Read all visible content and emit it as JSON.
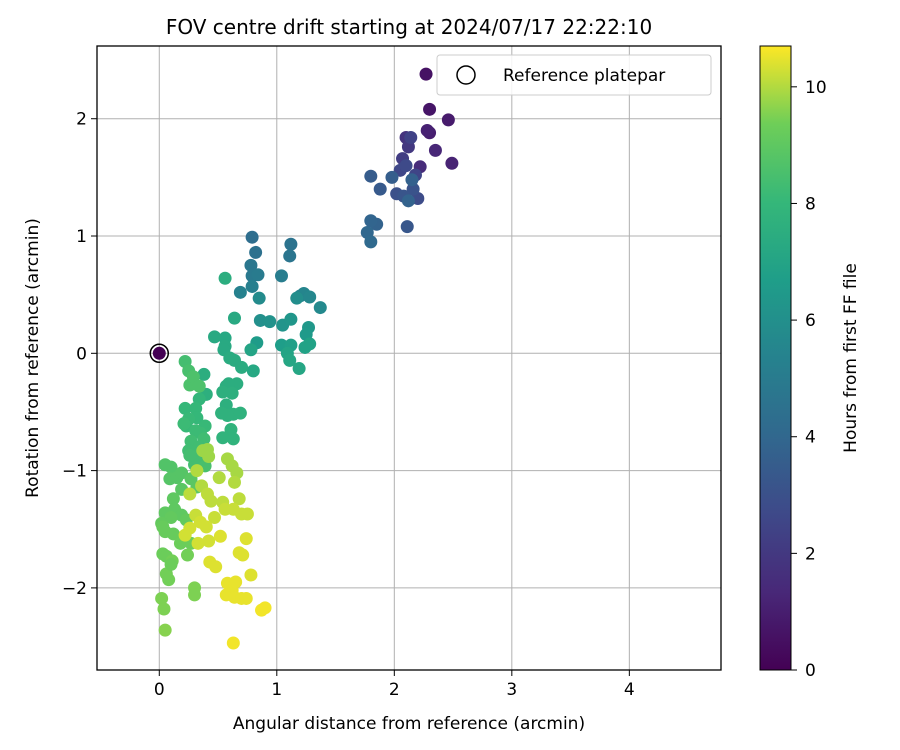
{
  "chart_data": {
    "type": "scatter",
    "title": "FOV centre drift starting at 2024/07/17 22:22:10",
    "xlabel": "Angular distance from reference (arcmin)",
    "ylabel": "Rotation from reference (arcmin)",
    "xlim": [
      -0.53,
      4.78
    ],
    "ylim": [
      -2.7,
      2.62
    ],
    "xticks": [
      0,
      1,
      2,
      3,
      4
    ],
    "xtick_labels": [
      "0",
      "1",
      "2",
      "3",
      "4"
    ],
    "yticks": [
      -2,
      -1,
      0,
      1,
      2
    ],
    "ytick_labels": [
      "−2",
      "−1",
      "0",
      "1",
      "2"
    ],
    "grid": true,
    "legend": {
      "placement": "upper-right",
      "label": "Reference platepar"
    },
    "reference_point": {
      "x": 0,
      "y": 0
    },
    "colorbar": {
      "label": "Hours from first FF file",
      "range": [
        0,
        10.7
      ],
      "ticks": [
        0,
        2,
        4,
        6,
        8,
        10
      ],
      "tick_labels": [
        "0",
        "2",
        "4",
        "6",
        "8",
        "10"
      ],
      "colormap": "viridis"
    },
    "series": [
      {
        "points": [
          [
            0.0,
            0.0,
            0.0
          ],
          [
            2.27,
            2.38,
            0.6
          ],
          [
            2.3,
            2.08,
            0.7
          ],
          [
            2.46,
            1.99,
            0.9
          ],
          [
            2.3,
            1.88,
            1.0
          ],
          [
            2.28,
            1.9,
            1.1
          ],
          [
            2.49,
            1.62,
            1.2
          ],
          [
            2.35,
            1.73,
            1.3
          ],
          [
            2.22,
            1.59,
            1.5
          ],
          [
            2.1,
            1.84,
            1.8
          ],
          [
            2.12,
            1.76,
            2.0
          ],
          [
            2.07,
            1.66,
            2.2
          ],
          [
            2.14,
            1.84,
            2.4
          ],
          [
            2.18,
            1.52,
            2.5
          ],
          [
            2.05,
            1.56,
            2.6
          ],
          [
            2.1,
            1.6,
            2.7
          ],
          [
            2.2,
            1.32,
            2.8
          ],
          [
            2.02,
            1.36,
            3.0
          ],
          [
            2.16,
            1.4,
            3.1
          ],
          [
            2.08,
            1.34,
            3.2
          ],
          [
            2.11,
            1.08,
            3.3
          ],
          [
            1.88,
            1.4,
            3.4
          ],
          [
            1.8,
            1.51,
            3.5
          ],
          [
            1.98,
            1.5,
            3.6
          ],
          [
            2.15,
            1.48,
            3.7
          ],
          [
            2.12,
            1.3,
            3.8
          ],
          [
            1.85,
            1.1,
            3.8
          ],
          [
            1.8,
            1.13,
            3.9
          ],
          [
            1.77,
            1.03,
            4.0
          ],
          [
            1.8,
            0.95,
            4.1
          ],
          [
            0.79,
            0.99,
            4.3
          ],
          [
            0.82,
            0.86,
            4.5
          ],
          [
            1.12,
            0.93,
            4.6
          ],
          [
            1.11,
            0.83,
            4.7
          ],
          [
            0.78,
            0.75,
            4.8
          ],
          [
            0.79,
            0.66,
            4.9
          ],
          [
            0.84,
            0.67,
            5.0
          ],
          [
            1.04,
            0.66,
            5.1
          ],
          [
            0.79,
            0.57,
            5.2
          ],
          [
            0.69,
            0.52,
            5.3
          ],
          [
            1.2,
            0.49,
            5.4
          ],
          [
            1.23,
            0.51,
            5.5
          ],
          [
            1.28,
            0.48,
            5.6
          ],
          [
            1.37,
            0.39,
            5.7
          ],
          [
            0.85,
            0.47,
            5.8
          ],
          [
            1.17,
            0.47,
            5.9
          ],
          [
            0.86,
            0.28,
            6.0
          ],
          [
            0.94,
            0.27,
            6.1
          ],
          [
            1.05,
            0.24,
            6.2
          ],
          [
            1.12,
            0.29,
            6.3
          ],
          [
            1.27,
            0.22,
            6.4
          ],
          [
            1.25,
            0.16,
            6.5
          ],
          [
            0.83,
            0.09,
            6.6
          ],
          [
            1.04,
            0.07,
            6.7
          ],
          [
            1.12,
            0.07,
            6.8
          ],
          [
            1.28,
            0.08,
            6.9
          ],
          [
            1.24,
            0.05,
            6.9
          ],
          [
            0.78,
            0.03,
            7.0
          ],
          [
            1.09,
            0.0,
            7.0
          ],
          [
            1.11,
            -0.06,
            7.1
          ],
          [
            1.19,
            -0.13,
            7.1
          ],
          [
            0.8,
            -0.15,
            7.2
          ],
          [
            0.56,
            0.13,
            7.2
          ],
          [
            0.47,
            0.14,
            7.3
          ],
          [
            0.56,
            0.06,
            7.3
          ],
          [
            0.64,
            0.3,
            7.3
          ],
          [
            0.55,
            0.03,
            7.3
          ],
          [
            0.6,
            -0.04,
            7.4
          ],
          [
            0.64,
            -0.06,
            7.4
          ],
          [
            0.7,
            -0.12,
            7.4
          ],
          [
            0.38,
            -0.18,
            7.5
          ],
          [
            0.66,
            -0.26,
            7.5
          ],
          [
            0.57,
            -0.28,
            7.5
          ],
          [
            0.59,
            -0.26,
            7.5
          ],
          [
            0.54,
            -0.33,
            7.6
          ],
          [
            0.62,
            -0.34,
            7.6
          ],
          [
            0.4,
            -0.35,
            7.6
          ],
          [
            0.57,
            -0.44,
            7.6
          ],
          [
            0.63,
            -0.52,
            7.7
          ],
          [
            0.58,
            -0.53,
            7.7
          ],
          [
            0.53,
            -0.51,
            7.7
          ],
          [
            0.69,
            -0.51,
            7.7
          ],
          [
            0.61,
            -0.65,
            7.8
          ],
          [
            0.63,
            -0.73,
            7.8
          ],
          [
            0.54,
            -0.72,
            7.8
          ],
          [
            0.56,
            0.64,
            7.5
          ],
          [
            0.34,
            -0.39,
            7.9
          ],
          [
            0.22,
            -0.47,
            8.0
          ],
          [
            0.31,
            -0.47,
            8.0
          ],
          [
            0.32,
            -0.55,
            8.0
          ],
          [
            0.25,
            -0.56,
            8.1
          ],
          [
            0.23,
            -0.62,
            8.1
          ],
          [
            0.39,
            -0.62,
            8.1
          ],
          [
            0.31,
            -0.66,
            8.2
          ],
          [
            0.21,
            -0.6,
            8.2
          ],
          [
            0.35,
            -0.68,
            8.2
          ],
          [
            0.27,
            -0.75,
            8.3
          ],
          [
            0.38,
            -0.73,
            8.3
          ],
          [
            0.34,
            -0.8,
            8.3
          ],
          [
            0.25,
            -0.83,
            8.3
          ],
          [
            0.31,
            -0.88,
            8.4
          ],
          [
            0.39,
            -0.89,
            8.4
          ],
          [
            0.3,
            -0.95,
            8.4
          ],
          [
            0.26,
            -0.87,
            8.4
          ],
          [
            0.39,
            -0.96,
            8.5
          ],
          [
            0.22,
            -0.07,
            8.4
          ],
          [
            0.25,
            -0.15,
            8.5
          ],
          [
            0.26,
            -0.27,
            8.6
          ],
          [
            0.29,
            -0.2,
            8.6
          ],
          [
            0.34,
            -0.28,
            8.6
          ],
          [
            0.05,
            -0.95,
            8.7
          ],
          [
            0.1,
            -0.97,
            8.7
          ],
          [
            0.09,
            -1.07,
            8.8
          ],
          [
            0.15,
            -1.06,
            8.8
          ],
          [
            0.19,
            -1.02,
            8.8
          ],
          [
            0.27,
            -1.07,
            8.9
          ],
          [
            0.32,
            -1.14,
            8.9
          ],
          [
            0.19,
            -1.16,
            8.9
          ],
          [
            0.12,
            -1.24,
            9.0
          ],
          [
            0.13,
            -1.33,
            9.0
          ],
          [
            0.19,
            -1.38,
            9.0
          ],
          [
            0.05,
            -1.36,
            9.0
          ],
          [
            0.1,
            -1.4,
            9.1
          ],
          [
            0.23,
            -1.42,
            9.1
          ],
          [
            0.02,
            -1.45,
            9.1
          ],
          [
            0.05,
            -1.52,
            9.2
          ],
          [
            0.12,
            -1.54,
            9.2
          ],
          [
            0.03,
            -1.48,
            9.2
          ],
          [
            0.18,
            -1.62,
            9.3
          ],
          [
            0.27,
            -1.62,
            9.3
          ],
          [
            0.03,
            -1.71,
            9.3
          ],
          [
            0.06,
            -1.73,
            9.3
          ],
          [
            0.11,
            -1.77,
            9.4
          ],
          [
            0.24,
            -1.72,
            9.4
          ],
          [
            0.06,
            -1.88,
            9.4
          ],
          [
            0.08,
            -1.93,
            9.4
          ],
          [
            0.3,
            -2.0,
            9.5
          ],
          [
            0.3,
            -2.06,
            9.5
          ],
          [
            0.02,
            -2.09,
            9.5
          ],
          [
            0.04,
            -2.18,
            9.5
          ],
          [
            0.05,
            -2.36,
            9.6
          ],
          [
            0.1,
            -1.8,
            9.3
          ],
          [
            0.37,
            -0.83,
            9.8
          ],
          [
            0.41,
            -0.82,
            9.8
          ],
          [
            0.42,
            -0.88,
            9.8
          ],
          [
            0.58,
            -0.9,
            9.9
          ],
          [
            0.62,
            -0.96,
            9.9
          ],
          [
            0.66,
            -1.02,
            9.9
          ],
          [
            0.51,
            -1.06,
            10.0
          ],
          [
            0.64,
            -1.1,
            10.0
          ],
          [
            0.32,
            -1.0,
            10.0
          ],
          [
            0.36,
            -1.13,
            10.0
          ],
          [
            0.41,
            -1.2,
            10.1
          ],
          [
            0.26,
            -1.2,
            10.1
          ],
          [
            0.44,
            -1.26,
            10.1
          ],
          [
            0.54,
            -1.27,
            10.1
          ],
          [
            0.68,
            -1.24,
            10.1
          ],
          [
            0.63,
            -1.33,
            10.2
          ],
          [
            0.7,
            -1.37,
            10.2
          ],
          [
            0.75,
            -1.37,
            10.2
          ],
          [
            0.56,
            -1.33,
            10.2
          ],
          [
            0.47,
            -1.4,
            10.2
          ],
          [
            0.31,
            -1.38,
            10.2
          ],
          [
            0.35,
            -1.44,
            10.3
          ],
          [
            0.4,
            -1.48,
            10.3
          ],
          [
            0.26,
            -1.49,
            10.3
          ],
          [
            0.22,
            -1.55,
            10.3
          ],
          [
            0.33,
            -1.62,
            10.3
          ],
          [
            0.42,
            -1.6,
            10.3
          ],
          [
            0.52,
            -1.56,
            10.4
          ],
          [
            0.74,
            -1.58,
            10.4
          ],
          [
            0.68,
            -1.7,
            10.4
          ],
          [
            0.71,
            -1.72,
            10.4
          ],
          [
            0.43,
            -1.78,
            10.4
          ],
          [
            0.48,
            -1.82,
            10.4
          ],
          [
            0.78,
            -1.89,
            10.4
          ],
          [
            0.58,
            -1.96,
            10.5
          ],
          [
            0.62,
            -2.02,
            10.5
          ],
          [
            0.65,
            -1.95,
            10.5
          ],
          [
            0.57,
            -2.06,
            10.5
          ],
          [
            0.64,
            -2.08,
            10.5
          ],
          [
            0.7,
            -2.09,
            10.5
          ],
          [
            0.74,
            -2.09,
            10.5
          ],
          [
            0.87,
            -2.19,
            10.6
          ],
          [
            0.9,
            -2.17,
            10.6
          ],
          [
            0.63,
            -2.47,
            10.6
          ]
        ]
      }
    ]
  }
}
